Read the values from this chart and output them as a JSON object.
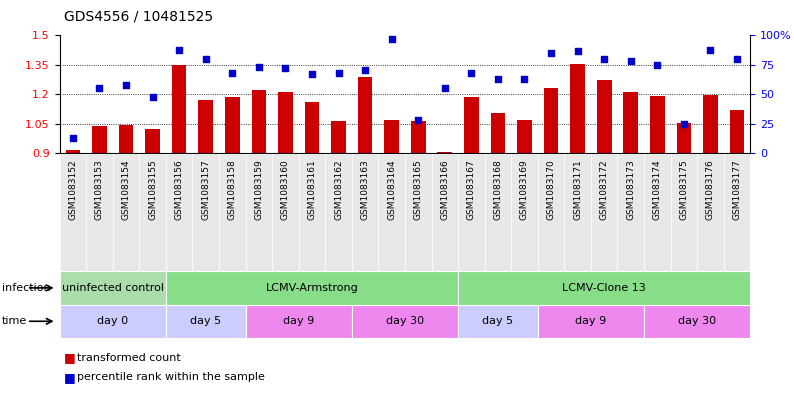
{
  "title": "GDS4556 / 10481525",
  "samples": [
    "GSM1083152",
    "GSM1083153",
    "GSM1083154",
    "GSM1083155",
    "GSM1083156",
    "GSM1083157",
    "GSM1083158",
    "GSM1083159",
    "GSM1083160",
    "GSM1083161",
    "GSM1083162",
    "GSM1083163",
    "GSM1083164",
    "GSM1083165",
    "GSM1083166",
    "GSM1083167",
    "GSM1083168",
    "GSM1083169",
    "GSM1083170",
    "GSM1083171",
    "GSM1083172",
    "GSM1083173",
    "GSM1083174",
    "GSM1083175",
    "GSM1083176",
    "GSM1083177"
  ],
  "bar_values": [
    0.915,
    1.04,
    1.045,
    1.025,
    1.35,
    1.17,
    1.185,
    1.22,
    1.21,
    1.16,
    1.065,
    1.29,
    1.07,
    1.065,
    0.905,
    1.185,
    1.105,
    1.07,
    1.23,
    1.355,
    1.275,
    1.21,
    1.19,
    1.055,
    1.195,
    1.12
  ],
  "blue_values": [
    13,
    55,
    58,
    48,
    88,
    80,
    68,
    73,
    72,
    67,
    68,
    71,
    97,
    28,
    55,
    68,
    63,
    63,
    85,
    87,
    80,
    78,
    75,
    25,
    88,
    80
  ],
  "ylim_left": [
    0.9,
    1.5
  ],
  "ylim_right": [
    0,
    100
  ],
  "yticks_left": [
    0.9,
    1.05,
    1.2,
    1.35,
    1.5
  ],
  "yticks_right": [
    0,
    25,
    50,
    75,
    100
  ],
  "ytick_labels_right": [
    "0",
    "25",
    "50",
    "75",
    "100%"
  ],
  "hlines": [
    1.05,
    1.2,
    1.35
  ],
  "bar_color": "#cc0000",
  "blue_color": "#0000cc",
  "bar_baseline": 0.9,
  "infection_groups": [
    {
      "label": "uninfected control",
      "start": 0,
      "end": 4,
      "color": "#aaddaa"
    },
    {
      "label": "LCMV-Armstrong",
      "start": 4,
      "end": 15,
      "color": "#88dd88"
    },
    {
      "label": "LCMV-Clone 13",
      "start": 15,
      "end": 26,
      "color": "#88dd88"
    }
  ],
  "time_groups": [
    {
      "label": "day 0",
      "start": 0,
      "end": 4,
      "color": "#ccccff"
    },
    {
      "label": "day 5",
      "start": 4,
      "end": 7,
      "color": "#ccccff"
    },
    {
      "label": "day 9",
      "start": 7,
      "end": 11,
      "color": "#ee88ee"
    },
    {
      "label": "day 30",
      "start": 11,
      "end": 15,
      "color": "#ee88ee"
    },
    {
      "label": "day 5",
      "start": 15,
      "end": 18,
      "color": "#ccccff"
    },
    {
      "label": "day 9",
      "start": 18,
      "end": 22,
      "color": "#ee88ee"
    },
    {
      "label": "day 30",
      "start": 22,
      "end": 26,
      "color": "#ee88ee"
    }
  ]
}
